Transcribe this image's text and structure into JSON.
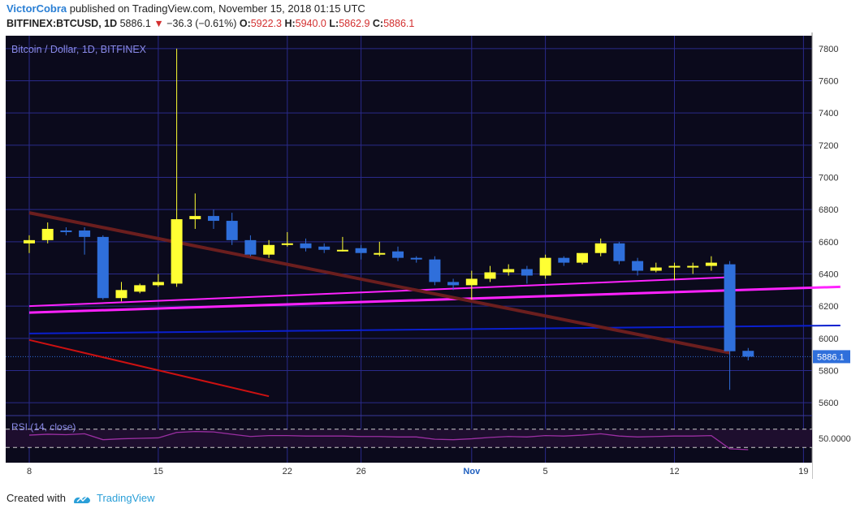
{
  "header": {
    "author": "VictorCobra",
    "published_text": "published on TradingView.com, November 15, 2018 01:15 UTC",
    "symbol": "BITFINEX:BTCUSD, 1D",
    "last": "5886.1",
    "change": "−36.3 (−0.61%)",
    "o_label": "O:",
    "o_value": "5922.3",
    "h_label": "H:",
    "h_value": "5940.0",
    "l_label": "L:",
    "l_value": "5862.9",
    "c_label": "C:",
    "c_value": "5886.1"
  },
  "footer": {
    "created_with": "Created with",
    "brand": "TradingView"
  },
  "colors": {
    "background": "#0b0a1c",
    "grid": "#2a2a8a",
    "up_candle": "#ffff33",
    "down_candle": "#2f6fdb",
    "trend_magenta": "#ff22ff",
    "trend_blue": "#0a1fcf",
    "trend_brown": "#6b1e1e",
    "trend_red": "#cc1111",
    "rsi_line": "#9b2fa3",
    "price_tag": "#2f6fdb"
  },
  "chart_data": {
    "type": "candlestick",
    "title": "Bitcoin / Dollar, 1D, BITFINEX",
    "ylim": [
      5520,
      7880
    ],
    "y_ticks": [
      5600,
      5800,
      6000,
      6200,
      6400,
      6600,
      6800,
      7000,
      7200,
      7400,
      7600,
      7800
    ],
    "x_ticks": [
      "8",
      "15",
      "22",
      "26",
      "Nov",
      "5",
      "12",
      "19"
    ],
    "x_tick_index": [
      0,
      7,
      14,
      18,
      24,
      28,
      35,
      42
    ],
    "last_price_label": "5886.1",
    "last_price": 5886.1,
    "candles": [
      {
        "o": 6590,
        "h": 6640,
        "l": 6530,
        "c": 6610
      },
      {
        "o": 6610,
        "h": 6720,
        "l": 6590,
        "c": 6680
      },
      {
        "o": 6670,
        "h": 6690,
        "l": 6640,
        "c": 6660
      },
      {
        "o": 6670,
        "h": 6690,
        "l": 6520,
        "c": 6630
      },
      {
        "o": 6630,
        "h": 6640,
        "l": 6240,
        "c": 6250
      },
      {
        "o": 6250,
        "h": 6350,
        "l": 6230,
        "c": 6300
      },
      {
        "o": 6290,
        "h": 6340,
        "l": 6280,
        "c": 6330
      },
      {
        "o": 6330,
        "h": 6400,
        "l": 6320,
        "c": 6350
      },
      {
        "o": 6340,
        "h": 7800,
        "l": 6320,
        "c": 6740
      },
      {
        "o": 6740,
        "h": 6900,
        "l": 6680,
        "c": 6760
      },
      {
        "o": 6760,
        "h": 6800,
        "l": 6680,
        "c": 6730
      },
      {
        "o": 6730,
        "h": 6780,
        "l": 6580,
        "c": 6610
      },
      {
        "o": 6610,
        "h": 6640,
        "l": 6510,
        "c": 6520
      },
      {
        "o": 6520,
        "h": 6610,
        "l": 6500,
        "c": 6580
      },
      {
        "o": 6580,
        "h": 6660,
        "l": 6570,
        "c": 6590
      },
      {
        "o": 6590,
        "h": 6620,
        "l": 6540,
        "c": 6560
      },
      {
        "o": 6570,
        "h": 6590,
        "l": 6530,
        "c": 6550
      },
      {
        "o": 6550,
        "h": 6630,
        "l": 6540,
        "c": 6550
      },
      {
        "o": 6560,
        "h": 6580,
        "l": 6490,
        "c": 6530
      },
      {
        "o": 6530,
        "h": 6600,
        "l": 6510,
        "c": 6530
      },
      {
        "o": 6540,
        "h": 6570,
        "l": 6480,
        "c": 6500
      },
      {
        "o": 6500,
        "h": 6510,
        "l": 6470,
        "c": 6490
      },
      {
        "o": 6490,
        "h": 6510,
        "l": 6330,
        "c": 6350
      },
      {
        "o": 6350,
        "h": 6370,
        "l": 6300,
        "c": 6330
      },
      {
        "o": 6330,
        "h": 6420,
        "l": 6240,
        "c": 6370
      },
      {
        "o": 6370,
        "h": 6450,
        "l": 6350,
        "c": 6410
      },
      {
        "o": 6410,
        "h": 6460,
        "l": 6390,
        "c": 6430
      },
      {
        "o": 6430,
        "h": 6450,
        "l": 6340,
        "c": 6390
      },
      {
        "o": 6390,
        "h": 6520,
        "l": 6370,
        "c": 6500
      },
      {
        "o": 6500,
        "h": 6510,
        "l": 6450,
        "c": 6470
      },
      {
        "o": 6470,
        "h": 6530,
        "l": 6460,
        "c": 6530
      },
      {
        "o": 6530,
        "h": 6620,
        "l": 6510,
        "c": 6590
      },
      {
        "o": 6590,
        "h": 6600,
        "l": 6460,
        "c": 6480
      },
      {
        "o": 6480,
        "h": 6500,
        "l": 6390,
        "c": 6420
      },
      {
        "o": 6420,
        "h": 6470,
        "l": 6410,
        "c": 6440
      },
      {
        "o": 6440,
        "h": 6470,
        "l": 6360,
        "c": 6450
      },
      {
        "o": 6450,
        "h": 6470,
        "l": 6400,
        "c": 6450
      },
      {
        "o": 6450,
        "h": 6510,
        "l": 6420,
        "c": 6470
      },
      {
        "o": 6460,
        "h": 6480,
        "l": 5680,
        "c": 5920
      },
      {
        "o": 5922.3,
        "h": 5940,
        "l": 5862.9,
        "c": 5886.1
      }
    ],
    "trendlines": [
      {
        "color_key": "trend_magenta",
        "from": [
          0,
          6160
        ],
        "to": [
          44,
          6320
        ],
        "width": 3
      },
      {
        "color_key": "trend_magenta",
        "from": [
          0,
          6200
        ],
        "to": [
          38,
          6380
        ],
        "width": 2
      },
      {
        "color_key": "trend_blue",
        "from": [
          0,
          6030
        ],
        "to": [
          44,
          6080
        ],
        "width": 2
      },
      {
        "color_key": "trend_brown",
        "from": [
          0,
          6780
        ],
        "to": [
          38,
          5910
        ],
        "width": 4
      },
      {
        "color_key": "trend_red",
        "from": [
          0,
          5990
        ],
        "to": [
          13,
          5640
        ],
        "width": 2
      }
    ],
    "rsi": {
      "label": "RSI (14, close)",
      "tick_label": "50.0000",
      "ylim": [
        0,
        100
      ],
      "upper": 70,
      "lower": 30,
      "values": [
        57,
        59,
        58,
        60,
        47,
        49,
        50,
        51,
        63,
        65,
        64,
        59,
        54,
        56,
        56,
        55,
        55,
        55,
        54,
        54,
        53,
        53,
        48,
        47,
        49,
        52,
        54,
        53,
        56,
        55,
        57,
        60,
        55,
        53,
        54,
        55,
        55,
        56,
        27,
        25
      ]
    }
  }
}
